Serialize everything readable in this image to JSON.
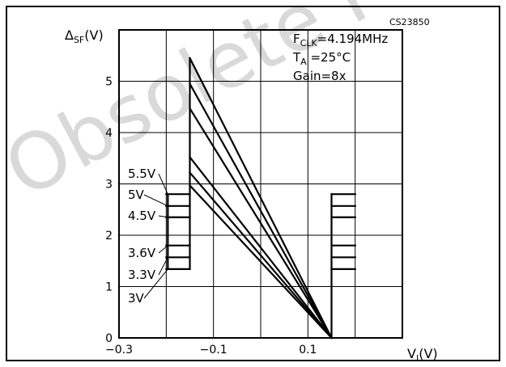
{
  "watermark": "Obsolete P",
  "reference": "CS23850",
  "conditions": [
    "F_CLK = 4.194MHz",
    "T_A = 25°C",
    "Gain = 8x"
  ],
  "conditions_parts": {
    "fclk_symbol": "F",
    "fclk_sub": "CLK",
    "fclk_value": "=4.194MHz",
    "ta_symbol": "T",
    "ta_sub": "A",
    "ta_value": " =25°C",
    "gain": "Gain=8x"
  },
  "axes": {
    "y_label_symbol": "Δ",
    "y_label_sub": "SF",
    "y_label_unit": "(V)",
    "x_label_symbol": "V",
    "x_label_sub": "I",
    "x_label_unit": "(V)"
  },
  "chart_data": {
    "type": "line",
    "xlim": [
      -0.3,
      0.3
    ],
    "ylim": [
      0,
      6
    ],
    "x_ticks": [
      -0.3,
      -0.1,
      0.1
    ],
    "x_tick_labels": [
      "−0.3",
      "−0.1",
      "0.1"
    ],
    "y_ticks": [
      0,
      1,
      2,
      3,
      4,
      5
    ],
    "y_tick_labels": [
      "0",
      "1",
      "2",
      "3",
      "4",
      "5"
    ],
    "grid": true,
    "gain_min_x": -0.2,
    "drop_x": -0.15,
    "peak_x": -0.15,
    "zero_x": 0.15,
    "rise_x": 0.15,
    "end_x": 0.2,
    "series": [
      {
        "name": "5.5V",
        "plateau": 2.8,
        "peak": 5.45
      },
      {
        "name": "5V",
        "plateau": 2.57,
        "peak": 4.95
      },
      {
        "name": "4.5V",
        "plateau": 2.35,
        "peak": 4.47
      },
      {
        "name": "3.6V",
        "plateau": 1.8,
        "peak": 3.52
      },
      {
        "name": "3.3V",
        "plateau": 1.57,
        "peak": 3.22
      },
      {
        "name": "3V",
        "plateau": 1.34,
        "peak": 2.97
      }
    ]
  }
}
